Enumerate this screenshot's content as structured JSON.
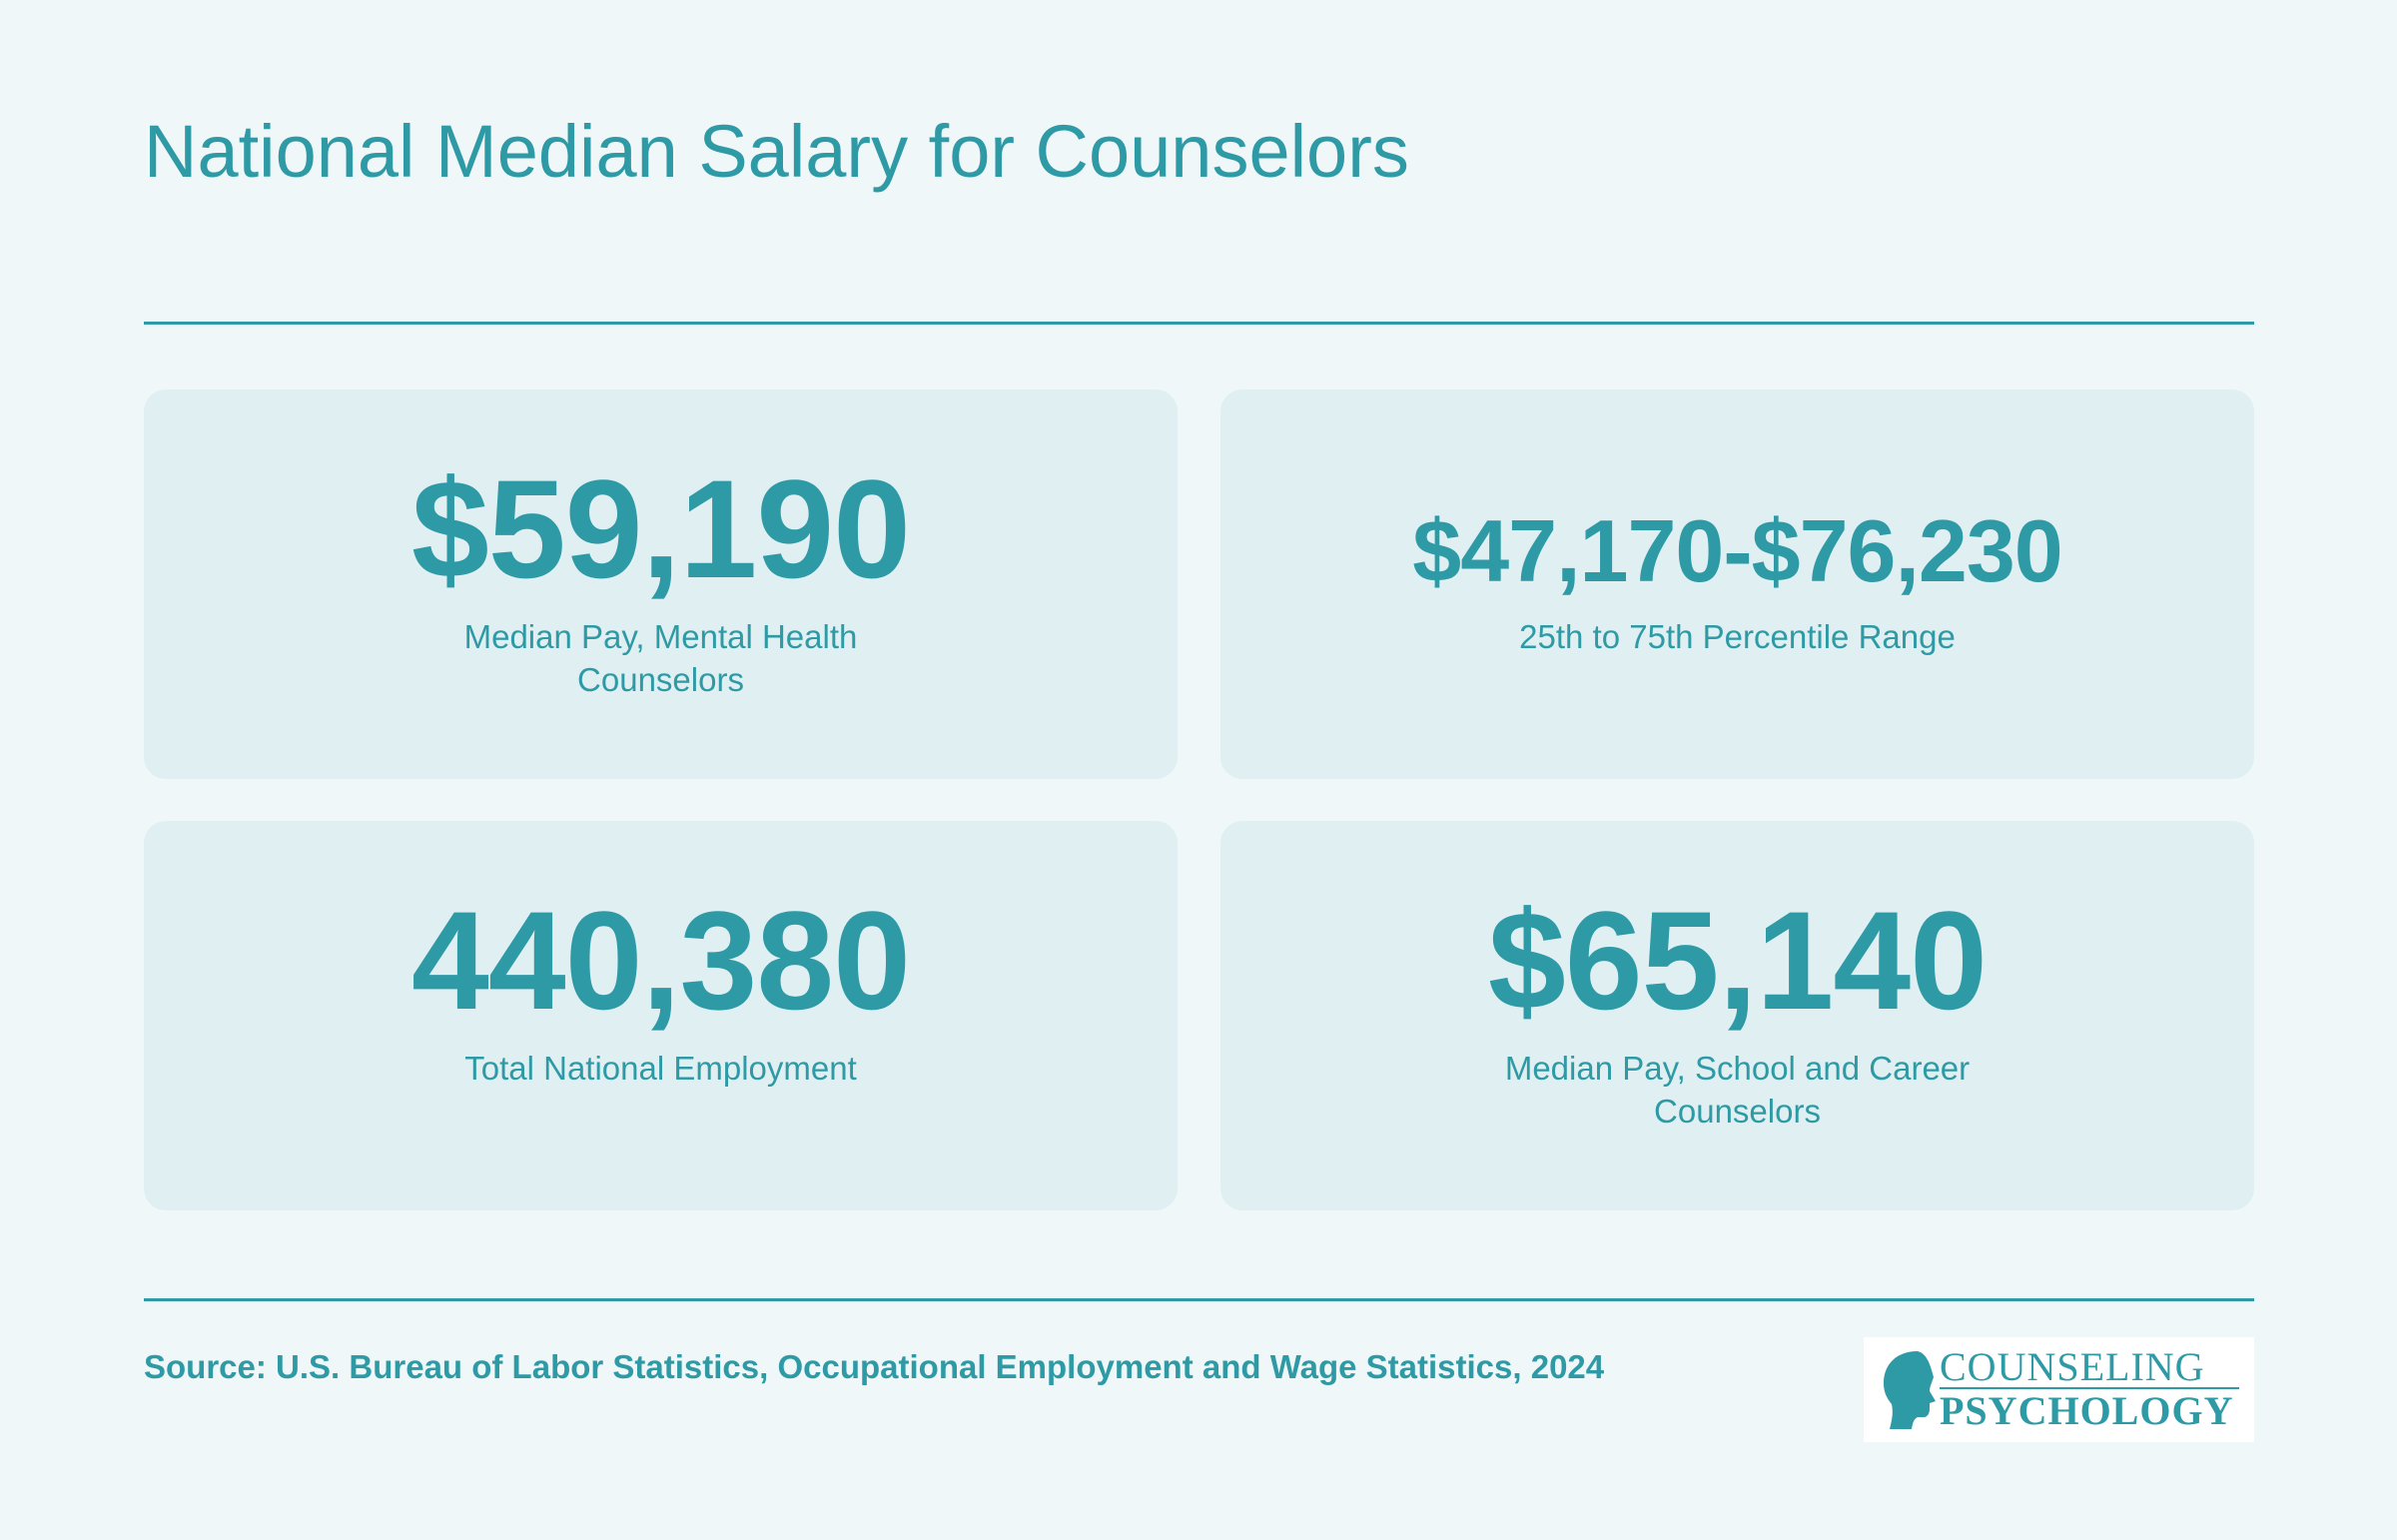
{
  "title": "National Median Salary for Counselors",
  "cards": [
    {
      "value": "$59,190",
      "label": "Median Pay, Mental Health Counselors"
    },
    {
      "value": "$47,170-$76,230",
      "label": "25th to 75th Percentile Range"
    },
    {
      "value": "440,380",
      "label": "Total National Employment"
    },
    {
      "value": "$65,140",
      "label": "Median Pay, School and Career Counselors"
    }
  ],
  "source": "Source: U.S. Bureau of Labor Statistics, Occupational Employment and Wage Statistics, 2024",
  "logo": {
    "line1": "COUNSELING",
    "line2": "PSYCHOLOGY"
  },
  "colors": {
    "accent": "#2e9aa6",
    "background": "#eff7f8",
    "card": "#e0f0f2"
  }
}
